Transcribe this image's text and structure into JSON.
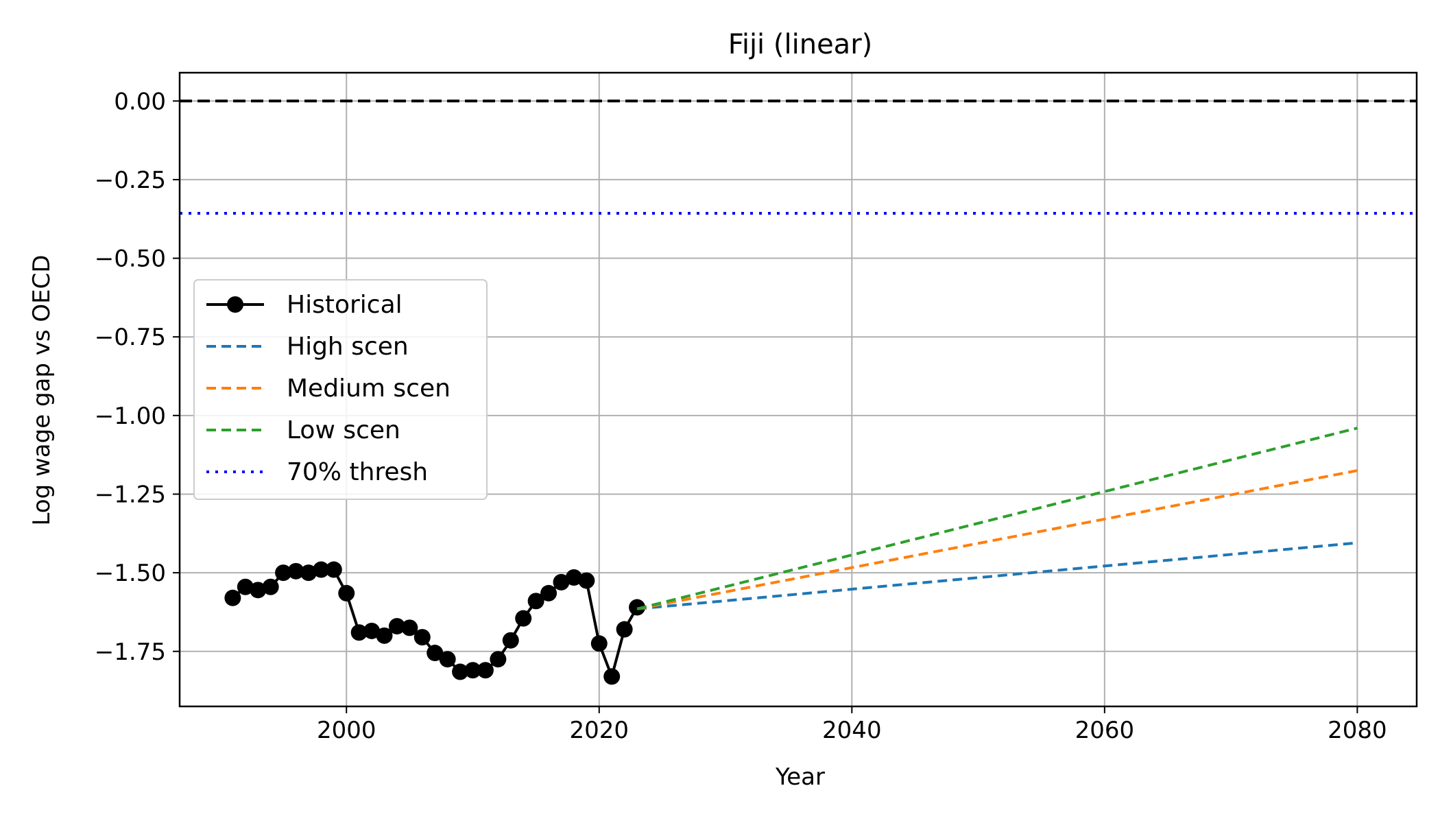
{
  "chart_data": {
    "type": "line",
    "title": "Fiji (linear)",
    "xlabel": "Year",
    "ylabel": "Log wage gap vs OECD",
    "xlim": [
      1986.8,
      2084.7
    ],
    "ylim": [
      -1.925,
      0.09
    ],
    "xticks": [
      2000,
      2020,
      2040,
      2060,
      2080
    ],
    "xtick_labels": [
      "2000",
      "2020",
      "2040",
      "2060",
      "2080"
    ],
    "yticks": [
      0.0,
      -0.25,
      -0.5,
      -0.75,
      -1.0,
      -1.25,
      -1.5,
      -1.75
    ],
    "ytick_labels": [
      "0.00",
      "−0.25",
      "−0.50",
      "−0.75",
      "−1.00",
      "−1.25",
      "−1.50",
      "−1.75"
    ],
    "grid": true,
    "legend_position": "center-left",
    "series": [
      {
        "name": "Historical",
        "color": "#000000",
        "style": "solid-markers",
        "x": [
          1991,
          1992,
          1993,
          1994,
          1995,
          1996,
          1997,
          1998,
          1999,
          2000,
          2001,
          2002,
          2003,
          2004,
          2005,
          2006,
          2007,
          2008,
          2009,
          2010,
          2011,
          2012,
          2013,
          2014,
          2015,
          2016,
          2017,
          2018,
          2019,
          2020,
          2021,
          2022,
          2023
        ],
        "y": [
          -1.58,
          -1.545,
          -1.555,
          -1.545,
          -1.5,
          -1.495,
          -1.5,
          -1.49,
          -1.49,
          -1.565,
          -1.69,
          -1.685,
          -1.7,
          -1.67,
          -1.675,
          -1.705,
          -1.755,
          -1.775,
          -1.815,
          -1.81,
          -1.81,
          -1.775,
          -1.715,
          -1.645,
          -1.59,
          -1.565,
          -1.53,
          -1.515,
          -1.525,
          -1.725,
          -1.83,
          -1.68,
          -1.61
        ]
      },
      {
        "name": "High scen",
        "color": "#1f77b4",
        "style": "dashed",
        "x": [
          2023,
          2080
        ],
        "y": [
          -1.615,
          -1.405
        ]
      },
      {
        "name": "Medium scen",
        "color": "#ff7f0e",
        "style": "dashed",
        "x": [
          2023,
          2080
        ],
        "y": [
          -1.615,
          -1.175
        ]
      },
      {
        "name": "Low scen",
        "color": "#2ca02c",
        "style": "dashed",
        "x": [
          2023,
          2080
        ],
        "y": [
          -1.615,
          -1.04
        ]
      },
      {
        "name": "70% thresh",
        "color": "#0000ff",
        "style": "dotted",
        "hline": -0.357
      },
      {
        "color": "#000000",
        "style": "dashed",
        "hline": 0.0
      }
    ]
  }
}
